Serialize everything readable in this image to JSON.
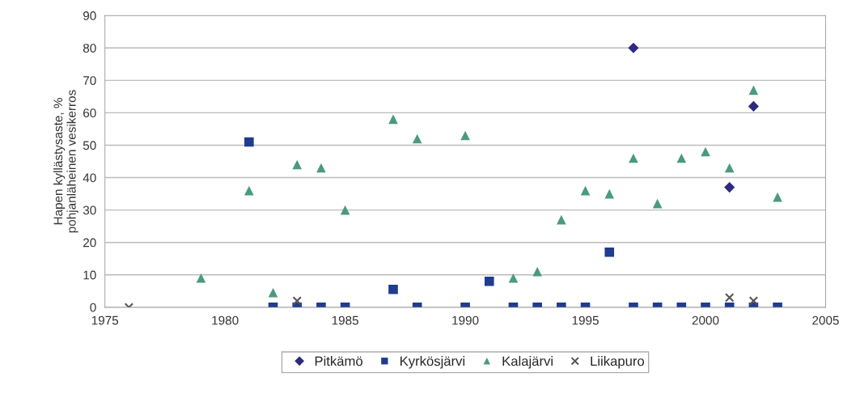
{
  "chart_data": {
    "type": "scatter",
    "ylabel": "Hapen kyllästysaste, %\npohjanläheinen vesikerros",
    "xlim": [
      1975,
      2005
    ],
    "xticks": [
      1975,
      1980,
      1985,
      1990,
      1995,
      2000,
      2005
    ],
    "ylim": [
      0,
      90
    ],
    "yticks": [
      0,
      10,
      20,
      30,
      40,
      50,
      60,
      70,
      80,
      90
    ],
    "grid": "y",
    "legend": "bottom",
    "series": [
      {
        "name": "Pitkämö",
        "color": "#2e2a80",
        "marker": "diamond",
        "x": [
          1997,
          2001,
          2002
        ],
        "values": [
          80,
          37,
          62
        ]
      },
      {
        "name": "Kyrkösjärvi",
        "color": "#1f3c8f",
        "marker": "square",
        "x": [
          1981,
          1982,
          1983,
          1984,
          1985,
          1987,
          1988,
          1990,
          1991,
          1992,
          1993,
          1994,
          1995,
          1996,
          1997,
          1998,
          1999,
          2000,
          2001,
          2002,
          2003
        ],
        "values": [
          51,
          0,
          0,
          0,
          0,
          5.5,
          0,
          0,
          8,
          0,
          0,
          0,
          0,
          17,
          0,
          0,
          0,
          0,
          0,
          0,
          0
        ]
      },
      {
        "name": "Kalajärvi",
        "color": "#4a9a80",
        "marker": "triangle",
        "x": [
          1979,
          1981,
          1982,
          1983,
          1984,
          1985,
          1987,
          1988,
          1990,
          1992,
          1993,
          1994,
          1995,
          1996,
          1997,
          1998,
          1999,
          2000,
          2001,
          2002,
          2003
        ],
        "values": [
          9,
          36,
          4.5,
          44,
          43,
          30,
          58,
          52,
          53,
          9,
          11,
          27,
          36,
          35,
          46,
          32,
          46,
          48,
          43,
          67,
          34
        ]
      },
      {
        "name": "Liikapuro",
        "color": "#555555",
        "marker": "cross",
        "x": [
          1976,
          1983,
          2001,
          2002
        ],
        "values": [
          0,
          2,
          3,
          2
        ]
      }
    ]
  }
}
